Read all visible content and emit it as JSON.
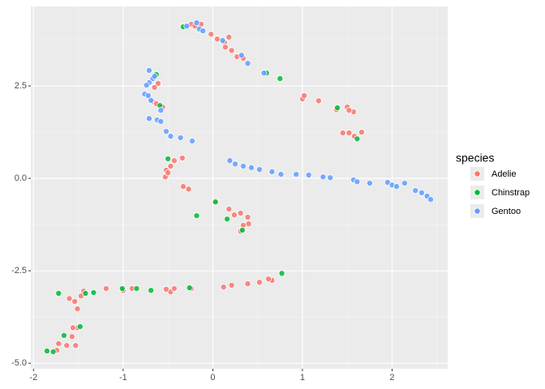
{
  "chart_data": {
    "type": "scatter",
    "legend_title": "species",
    "xlim": [
      -2.03,
      2.62
    ],
    "ylim": [
      -5.15,
      4.65
    ],
    "xticks": [
      -2,
      -1,
      0,
      1,
      2
    ],
    "yticks": [
      {
        "value": -5,
        "label": "-5.0"
      },
      -2.5,
      {
        "value": 0,
        "label": "0.0"
      },
      2.5
    ],
    "grid": true,
    "legend": "right",
    "series": [
      {
        "name": "Adelie",
        "color": "#F8766D",
        "x": [
          -0.24,
          -0.2,
          -0.13,
          -0.02,
          0.05,
          0.13,
          0.18,
          0.14,
          0.21,
          0.27,
          0.34,
          1.0,
          1.02,
          1.18,
          1.38,
          1.5,
          1.57,
          1.52,
          1.45,
          1.52,
          1.66,
          1.58,
          -0.61,
          -0.65,
          -0.67,
          -0.63,
          -0.56,
          -0.34,
          -0.43,
          -0.47,
          -0.52,
          -0.53,
          -0.5,
          -0.33,
          -0.27,
          0.03,
          0.18,
          0.24,
          0.31,
          0.39,
          0.34,
          0.31,
          0.4,
          0.66,
          0.62,
          0.52,
          0.39,
          0.21,
          0.12,
          -0.24,
          -0.47,
          -0.52,
          -0.43,
          -0.9,
          -1.0,
          -1.19,
          -1.47,
          -1.6,
          -1.54,
          -1.51,
          -1.51,
          -1.56,
          -1.57,
          -1.63,
          -1.72,
          -1.74,
          -1.53,
          -1.44
        ],
        "y": [
          4.17,
          4.12,
          4.17,
          3.9,
          3.77,
          3.68,
          3.82,
          3.55,
          3.46,
          3.29,
          3.25,
          2.15,
          2.24,
          2.1,
          1.86,
          1.93,
          1.8,
          1.84,
          1.23,
          1.23,
          1.25,
          1.14,
          2.57,
          2.46,
          2.08,
          2.02,
          1.93,
          0.55,
          0.48,
          0.33,
          0.22,
          0.04,
          0.15,
          -0.22,
          -0.29,
          -0.61,
          -0.83,
          -0.99,
          -0.94,
          -1.05,
          -1.27,
          -1.43,
          -1.23,
          -2.76,
          -2.72,
          -2.81,
          -2.85,
          -2.89,
          -2.94,
          -2.98,
          -3.07,
          -3.0,
          -2.98,
          -2.98,
          -3.03,
          -2.98,
          -3.18,
          -3.25,
          -3.33,
          -3.53,
          -4.04,
          -4.04,
          -4.28,
          -4.52,
          -4.47,
          -4.65,
          -4.52,
          -3.05
        ]
      },
      {
        "name": "Chinstrap",
        "color": "#00BA38",
        "x": [
          -0.33,
          0.6,
          0.75,
          1.39,
          1.61,
          -0.63,
          -0.59,
          -0.5,
          0.03,
          0.16,
          0.33,
          -0.18,
          0.77,
          -0.26,
          -0.69,
          -0.85,
          -1.42,
          -1.33,
          -1.72,
          -1.48,
          -1.66,
          -1.85,
          -1.78,
          -1.01
        ],
        "y": [
          4.1,
          2.85,
          2.7,
          1.91,
          1.07,
          2.81,
          1.97,
          0.53,
          -0.64,
          -1.1,
          -1.4,
          -1.01,
          -2.57,
          -2.96,
          -3.03,
          -2.98,
          -3.11,
          -3.09,
          -3.11,
          -4.01,
          -4.25,
          -4.67,
          -4.69,
          -2.98
        ]
      },
      {
        "name": "Gentoo",
        "color": "#619CFF",
        "x": [
          -0.29,
          -0.18,
          -0.15,
          -0.11,
          0.11,
          0.32,
          0.39,
          0.57,
          -0.71,
          -0.67,
          -0.65,
          -0.71,
          -0.74,
          -0.76,
          -0.72,
          -0.69,
          -0.58,
          -0.71,
          -0.62,
          -0.58,
          -0.52,
          -0.47,
          -0.36,
          -0.23,
          0.19,
          0.25,
          0.34,
          0.43,
          0.52,
          0.66,
          0.76,
          0.93,
          1.07,
          1.23,
          1.31,
          1.57,
          1.61,
          1.75,
          1.95,
          2.0,
          2.05,
          2.14,
          2.26,
          2.33,
          2.39,
          2.43
        ],
        "y": [
          4.12,
          4.21,
          4.04,
          3.99,
          3.73,
          3.33,
          3.11,
          2.85,
          2.92,
          2.7,
          2.76,
          2.59,
          2.52,
          2.28,
          2.24,
          2.11,
          1.84,
          1.62,
          1.58,
          1.54,
          1.27,
          1.14,
          1.1,
          1.01,
          0.48,
          0.39,
          0.33,
          0.29,
          0.24,
          0.18,
          0.11,
          0.11,
          0.09,
          0.04,
          0.02,
          -0.04,
          -0.09,
          -0.13,
          -0.11,
          -0.18,
          -0.22,
          -0.13,
          -0.33,
          -0.39,
          -0.48,
          -0.57
        ]
      }
    ]
  }
}
